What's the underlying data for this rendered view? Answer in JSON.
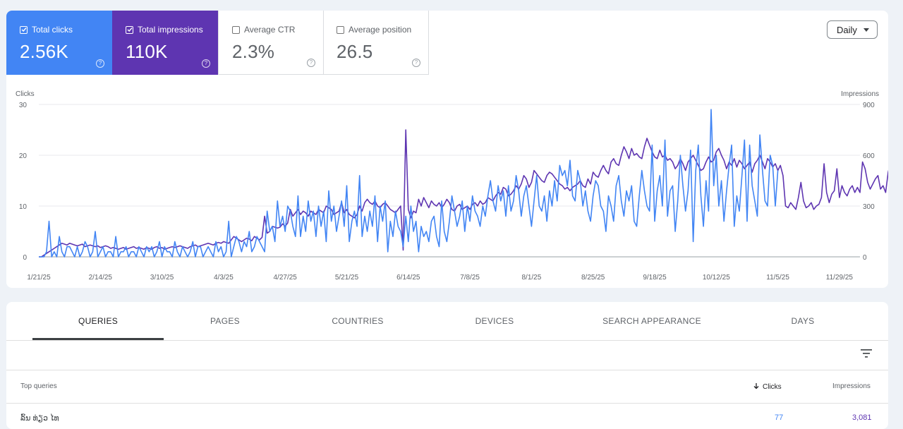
{
  "metrics": [
    {
      "label": "Total clicks",
      "value": "2.56K",
      "checked": true,
      "color": "#4285f4"
    },
    {
      "label": "Total impressions",
      "value": "110K",
      "checked": true,
      "color": "#5e35b1"
    },
    {
      "label": "Average CTR",
      "value": "2.3%",
      "checked": false
    },
    {
      "label": "Average position",
      "value": "26.5",
      "checked": false
    }
  ],
  "range_select": {
    "label": "Daily"
  },
  "chart_data": {
    "type": "line",
    "left_axis_label": "Clicks",
    "right_axis_label": "Impressions",
    "left_ylim": [
      0,
      30
    ],
    "right_ylim": [
      0,
      900
    ],
    "left_ticks": [
      "0",
      "10",
      "20",
      "30"
    ],
    "right_ticks": [
      "0",
      "300",
      "600",
      "900"
    ],
    "x_ticks": [
      "1/21/25",
      "2/14/25",
      "3/10/25",
      "4/3/25",
      "4/27/25",
      "5/21/25",
      "6/14/25",
      "7/8/25",
      "8/1/25",
      "8/25/25",
      "9/18/25",
      "10/12/25",
      "11/5/25",
      "11/29/25"
    ],
    "start_date": "1/21/25",
    "grid": true,
    "series": [
      {
        "axis": "left",
        "color": "#4285f4",
        "values": [
          0,
          0,
          0,
          1,
          7,
          0,
          1,
          0,
          4,
          1,
          0,
          2,
          2,
          1,
          0,
          2,
          0,
          1,
          3,
          2,
          0,
          1,
          5,
          0,
          1,
          2,
          0,
          1,
          1,
          0,
          4,
          0,
          1,
          1,
          2,
          0,
          1,
          1,
          0,
          2,
          1,
          0,
          2,
          1,
          2,
          0,
          1,
          3,
          0,
          2,
          1,
          1,
          0,
          3,
          1,
          0,
          2,
          1,
          0,
          1,
          3,
          0,
          2,
          2,
          0,
          1,
          2,
          1,
          0,
          3,
          1,
          2,
          0,
          1,
          7,
          0,
          2,
          4,
          3,
          1,
          3,
          2,
          5,
          1,
          2,
          4,
          3,
          2,
          1,
          9,
          5,
          6,
          3,
          11,
          6,
          8,
          5,
          10,
          9,
          6,
          4,
          12,
          4,
          8,
          5,
          11,
          7,
          9,
          4,
          10,
          6,
          9,
          3,
          13,
          7,
          10,
          5,
          8,
          11,
          6,
          14,
          3,
          7,
          9,
          6,
          16,
          4,
          8,
          5,
          9,
          6,
          12,
          3,
          10,
          7,
          11,
          1,
          7,
          4,
          9,
          6,
          5,
          2,
          8,
          3,
          10,
          5,
          7,
          1,
          6,
          4,
          5,
          3,
          7,
          8,
          4,
          2,
          11,
          5,
          3,
          7,
          12,
          9,
          6,
          8,
          11,
          5,
          10,
          7,
          12,
          9,
          8,
          6,
          10,
          8,
          12,
          15,
          11,
          9,
          14,
          11,
          13,
          8,
          14,
          9,
          11,
          16,
          13,
          8,
          12,
          14,
          10,
          6,
          11,
          16,
          10,
          9,
          12,
          7,
          13,
          10,
          15,
          11,
          18,
          16,
          17,
          14,
          19,
          12,
          11,
          17,
          15,
          10,
          13,
          9,
          7,
          12,
          15,
          14,
          10,
          9,
          5,
          12,
          10,
          7,
          14,
          16,
          11,
          8,
          13,
          11,
          14,
          7,
          6,
          12,
          17,
          13,
          10,
          9,
          22,
          7,
          13,
          16,
          10,
          23,
          8,
          13,
          14,
          5,
          11,
          20,
          14,
          9,
          13,
          21,
          3,
          17,
          22,
          12,
          6,
          15,
          9,
          29,
          14,
          20,
          10,
          15,
          7,
          13,
          18,
          22,
          6,
          12,
          9,
          16,
          23,
          7,
          22,
          14,
          11,
          8,
          24,
          17,
          11,
          10,
          20,
          18,
          10,
          17
        ]
      },
      {
        "axis": "right",
        "color": "#5e35b1",
        "values": [
          0,
          0,
          10,
          20,
          30,
          40,
          50,
          60,
          70,
          80,
          75,
          70,
          80,
          75,
          70,
          65,
          70,
          75,
          60,
          65,
          70,
          65,
          60,
          65,
          55,
          60,
          65,
          60,
          50,
          55,
          50,
          45,
          50,
          55,
          45,
          50,
          55,
          60,
          50,
          55,
          50,
          45,
          55,
          50,
          45,
          55,
          60,
          50,
          55,
          45,
          50,
          55,
          60,
          55,
          60,
          65,
          60,
          55,
          50,
          60,
          65,
          70,
          60,
          65,
          70,
          75,
          80,
          75,
          70,
          80,
          85,
          80,
          90,
          85,
          80,
          100,
          120,
          110,
          100,
          90,
          100,
          110,
          105,
          95,
          120,
          110,
          100,
          115,
          240,
          140,
          150,
          180,
          175,
          170,
          175,
          195,
          180,
          200,
          280,
          240,
          260,
          280,
          250,
          270,
          260,
          240,
          270,
          260,
          250,
          280,
          270,
          260,
          300,
          290,
          280,
          250,
          260,
          270,
          320,
          260,
          280,
          250,
          240,
          230,
          250,
          300,
          270,
          320,
          340,
          320,
          310,
          330,
          300,
          290,
          310,
          320,
          300,
          280,
          270,
          260,
          280,
          300,
          40,
          750,
          280,
          230,
          270,
          260,
          340,
          300,
          350,
          320,
          290,
          330,
          310,
          300,
          320,
          290,
          310,
          340,
          320,
          280,
          270,
          300,
          310,
          280,
          290,
          300,
          280,
          310,
          320,
          300,
          330,
          310,
          320,
          350,
          340,
          330,
          360,
          380,
          370,
          410,
          400,
          360,
          370,
          390,
          420,
          400,
          430,
          480,
          460,
          410,
          440,
          510,
          490,
          470,
          450,
          440,
          480,
          500,
          490,
          470,
          450,
          430,
          420,
          400,
          410,
          390,
          410,
          420,
          430,
          450,
          420,
          410,
          460,
          430,
          500,
          480,
          470,
          510,
          540,
          510,
          490,
          560,
          580,
          550,
          540,
          600,
          650,
          620,
          580,
          640,
          600,
          610,
          590,
          580,
          650,
          700,
          660,
          620,
          590,
          580,
          630,
          590,
          600,
          570,
          580,
          560,
          520,
          540,
          580,
          550,
          510,
          560,
          580,
          600,
          570,
          540,
          510,
          520,
          560,
          590,
          560,
          570,
          620,
          640,
          600,
          570,
          520,
          560,
          540,
          580,
          530,
          570,
          550,
          520,
          540,
          560,
          500,
          550,
          570,
          600,
          560,
          520,
          580,
          560,
          530,
          550,
          510,
          540,
          480,
          300,
          290,
          320,
          300,
          280,
          350,
          440,
          330,
          290,
          300,
          320,
          280,
          300,
          310,
          350,
          550,
          380,
          320,
          370,
          390,
          520,
          350,
          420,
          380,
          360,
          400,
          420,
          380,
          410,
          380,
          560,
          520,
          440,
          400,
          430,
          460,
          480,
          400,
          420,
          380,
          500,
          560,
          540,
          480,
          420,
          400,
          430,
          460
        ]
      }
    ]
  },
  "tabs": [
    {
      "label": "QUERIES",
      "active": true
    },
    {
      "label": "PAGES"
    },
    {
      "label": "COUNTRIES"
    },
    {
      "label": "DEVICES"
    },
    {
      "label": "SEARCH APPEARANCE"
    },
    {
      "label": "DAYS"
    }
  ],
  "table": {
    "col_query": "Top queries",
    "col_clicks": "Clicks",
    "col_impressions": "Impressions",
    "sort_icon": "arrow-down-icon",
    "first_row": {
      "query": "ລົ້ນ ທ່ຽວ ໄທ",
      "clicks": "77",
      "impressions": "3,081"
    }
  }
}
